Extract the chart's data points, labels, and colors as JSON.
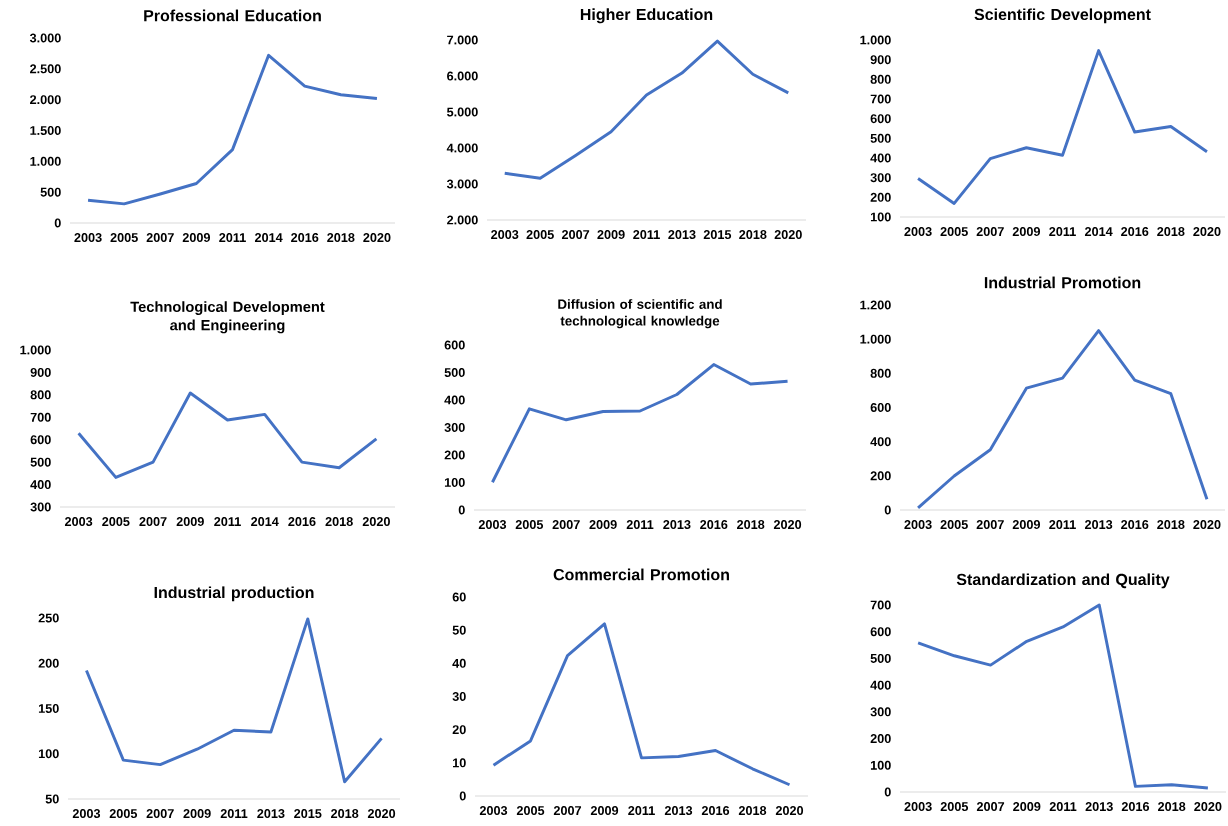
{
  "chart_data": [
    {
      "type": "line",
      "title": "Professional Education",
      "categories": [
        "2003",
        "2005",
        "2007",
        "2009",
        "2011",
        "2014",
        "2016",
        "2018",
        "2020"
      ],
      "values": [
        370,
        310,
        470,
        640,
        1190,
        2720,
        2220,
        2080,
        2020
      ],
      "color": "#4472c4",
      "marker": "none",
      "ylim": [
        0,
        3000
      ],
      "yticks": [
        0,
        500,
        {
          "value": 1000,
          "label": "1.000"
        },
        {
          "value": 1500,
          "label": "1.500"
        },
        {
          "value": 2000,
          "label": "2.000"
        },
        {
          "value": 2500,
          "label": "2.500"
        },
        {
          "value": 3000,
          "label": "3.000"
        }
      ]
    },
    {
      "type": "line",
      "title": "Higher Education",
      "categories": [
        "2003",
        "2005",
        "2007",
        "2009",
        "2011",
        "2013",
        "2015",
        "2018",
        "2020"
      ],
      "values": [
        3300,
        3160,
        3790,
        4450,
        5470,
        6080,
        6970,
        6050,
        5530
      ],
      "color": "#4472c4",
      "marker": "none",
      "ylim": [
        2000,
        7000
      ],
      "yticks": [
        {
          "value": 2000,
          "label": "2.000"
        },
        {
          "value": 3000,
          "label": "3.000"
        },
        {
          "value": 4000,
          "label": "4.000"
        },
        {
          "value": 5000,
          "label": "5.000"
        },
        {
          "value": 6000,
          "label": "6.000"
        },
        {
          "value": 7000,
          "label": "7.000"
        }
      ]
    },
    {
      "type": "line",
      "title": "Scientific Development",
      "categories": [
        "2003",
        "2005",
        "2007",
        "2009",
        "2011",
        "2014",
        "2016",
        "2018",
        "2020"
      ],
      "values": [
        296,
        169,
        397,
        452,
        414,
        946,
        532,
        560,
        432
      ],
      "color": "#4472c4",
      "marker": "none",
      "ylim": [
        100,
        1000
      ],
      "yticks": [
        100,
        200,
        300,
        400,
        500,
        600,
        700,
        800,
        900,
        {
          "value": 1000,
          "label": "1.000"
        }
      ]
    },
    {
      "type": "line",
      "title": "Technological Development and Engineering",
      "categories": [
        "2003",
        "2005",
        "2007",
        "2009",
        "2011",
        "2014",
        "2016",
        "2018",
        "2020"
      ],
      "values": [
        629,
        432,
        500,
        808,
        688,
        713,
        500,
        475,
        604
      ],
      "color": "#4472c4",
      "marker": "none",
      "ylim": [
        300,
        1000
      ],
      "yticks": [
        300,
        400,
        500,
        600,
        700,
        800,
        900,
        {
          "value": 1000,
          "label": "1.000"
        }
      ]
    },
    {
      "type": "line",
      "title": "Diffusion of scientific and technological knowledge",
      "categories": [
        "2003",
        "2005",
        "2007",
        "2009",
        "2011",
        "2013",
        "2016",
        "2018",
        "2020"
      ],
      "values": [
        101,
        368,
        328,
        358,
        360,
        420,
        529,
        458,
        468
      ],
      "color": "#4472c4",
      "marker": "none",
      "ylim": [
        0,
        600
      ],
      "yticks": [
        0,
        100,
        200,
        300,
        400,
        500,
        600
      ]
    },
    {
      "type": "line",
      "title": "Industrial Promotion",
      "categories": [
        "2003",
        "2005",
        "2007",
        "2009",
        "2011",
        "2013",
        "2016",
        "2018",
        "2020"
      ],
      "values": [
        12,
        199,
        353,
        713,
        772,
        1050,
        760,
        681,
        63
      ],
      "color": "#4472c4",
      "marker": "none",
      "ylim": [
        0,
        1200
      ],
      "yticks": [
        0,
        200,
        400,
        600,
        800,
        {
          "value": 1000,
          "label": "1.000"
        },
        {
          "value": 1200,
          "label": "1.200"
        }
      ]
    },
    {
      "type": "line",
      "title": "Industrial production",
      "categories": [
        "2003",
        "2005",
        "2007",
        "2009",
        "2011",
        "2013",
        "2015",
        "2018",
        "2020"
      ],
      "values": [
        192,
        93,
        88,
        105,
        126,
        124,
        249,
        69,
        117
      ],
      "color": "#4472c4",
      "marker": "none",
      "ylim": [
        50,
        250
      ],
      "yticks": [
        50,
        100,
        150,
        200,
        250
      ]
    },
    {
      "type": "line",
      "title": "Commercial Promotion",
      "categories": [
        "2003",
        "2005",
        "2007",
        "2009",
        "2011",
        "2013",
        "2016",
        "2018",
        "2020"
      ],
      "values": [
        9.3,
        16.6,
        42.3,
        51.9,
        11.5,
        11.9,
        13.7,
        8.2,
        3.4
      ],
      "color": "#4472c4",
      "marker": "none",
      "ylim": [
        0,
        60
      ],
      "yticks": [
        0,
        10,
        20,
        30,
        40,
        50,
        60
      ]
    },
    {
      "type": "line",
      "title": "Standardization and Quality",
      "categories": [
        "2003",
        "2005",
        "2007",
        "2009",
        "2011",
        "2013",
        "2016",
        "2018",
        "2020"
      ],
      "values": [
        558,
        510,
        475,
        564,
        618,
        700,
        21,
        27,
        15
      ],
      "color": "#4472c4",
      "marker": "none",
      "ylim": [
        0,
        700
      ],
      "yticks": [
        0,
        100,
        200,
        300,
        400,
        500,
        600,
        700
      ]
    }
  ]
}
